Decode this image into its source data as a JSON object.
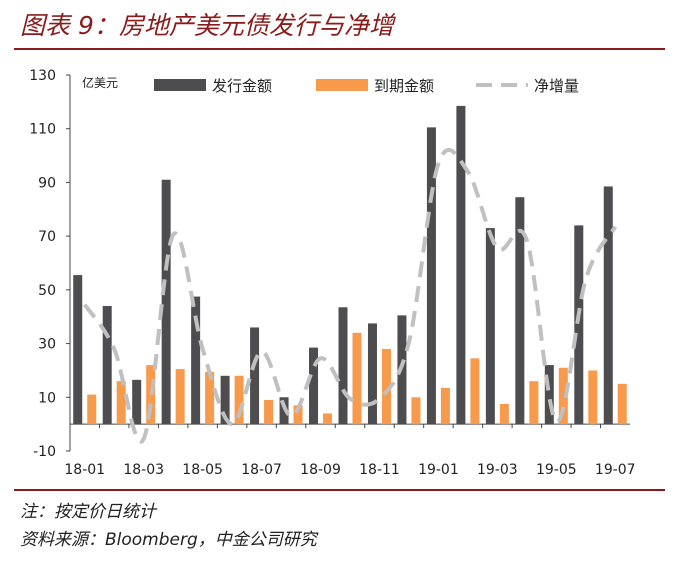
{
  "figure": {
    "title": "图表 9：房地产美元债发行与净增",
    "note": "注：按定价日统计",
    "source": "资料来源：Bloomberg，中金公司研究"
  },
  "chart_data": {
    "type": "bar",
    "unit_label": "亿美元",
    "categories": [
      "18-01",
      "18-02",
      "18-03",
      "18-04",
      "18-05",
      "18-06",
      "18-07",
      "18-08",
      "18-09",
      "18-10",
      "18-11",
      "18-12",
      "19-01",
      "19-02",
      "19-03",
      "19-04",
      "19-05",
      "19-06",
      "19-07"
    ],
    "tick_labels": [
      "18-01",
      "18-03",
      "18-05",
      "18-07",
      "18-09",
      "18-11",
      "19-01",
      "19-03",
      "19-05",
      "19-07"
    ],
    "series": [
      {
        "name": "发行金额",
        "type": "bar",
        "color": "#4d4d4f",
        "values": [
          55.5,
          44,
          16.5,
          91,
          47.5,
          18,
          36,
          10,
          28.5,
          43.5,
          37.5,
          40.5,
          110.5,
          118.5,
          73,
          84.5,
          22,
          74,
          88.5
        ]
      },
      {
        "name": "到期金额",
        "type": "bar",
        "color": "#f79a4b",
        "values": [
          11,
          16,
          22,
          20.5,
          19.5,
          18,
          9,
          7,
          4,
          34,
          28,
          10,
          13.5,
          24.5,
          7.5,
          16,
          21,
          20,
          15
        ]
      },
      {
        "name": "净增量",
        "type": "line",
        "style": "dashed",
        "color": "#c0c0c0",
        "values": [
          44.5,
          28,
          -5.5,
          70.5,
          28,
          0,
          27,
          3,
          24.5,
          9.5,
          9.5,
          30.5,
          97,
          94,
          65.5,
          68.5,
          1,
          54,
          73.5
        ]
      }
    ],
    "ylim": [
      -10,
      130
    ],
    "yticks": [
      -10,
      10,
      30,
      50,
      70,
      90,
      110,
      130
    ],
    "legend_position": "top",
    "grid": false
  }
}
